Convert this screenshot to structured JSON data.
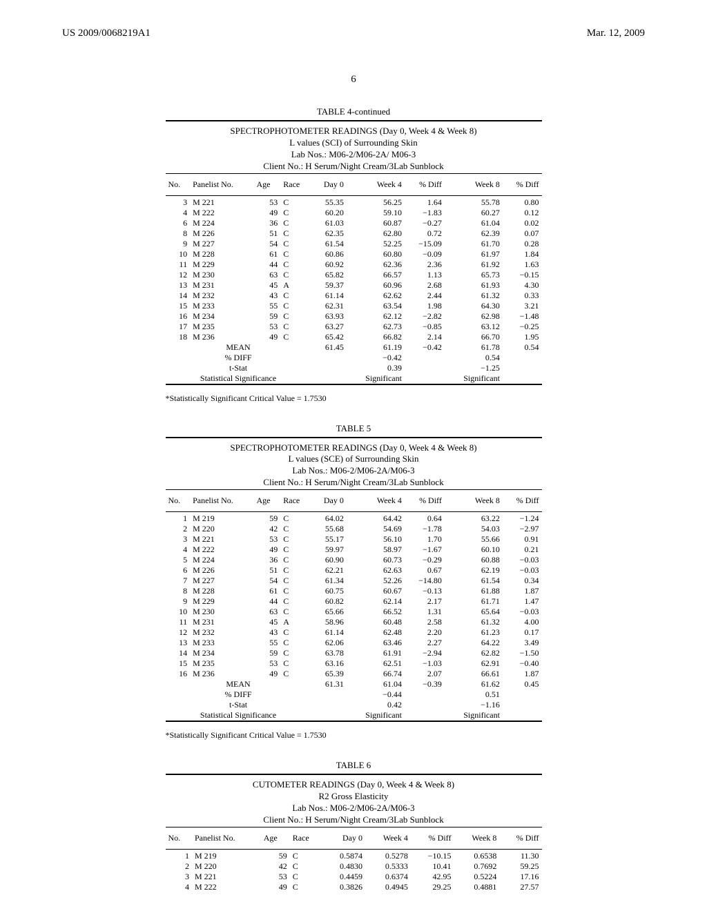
{
  "header": {
    "pub_no": "US 2009/0068219A1",
    "pub_date": "Mar. 12, 2009",
    "page_no": "6"
  },
  "tables": {
    "t4": {
      "label": "TABLE 4-continued",
      "caption": [
        "SPECTROPHOTOMETER READINGS (Day 0, Week 4 & Week 8)",
        "L values (SCI) of Surrounding Skin",
        "Lab Nos.: M06-2/M06-2A/ M06-3",
        "Client No.: H Serum/Night Cream/3Lab Sunblock"
      ],
      "cols": [
        "No.",
        "Panelist No.",
        "Age",
        "Race",
        "Day 0",
        "Week 4",
        "% Diff",
        "Week 8",
        "% Diff"
      ],
      "rows": [
        [
          "3",
          "M 221",
          "53",
          "C",
          "55.35",
          "56.25",
          "1.64",
          "55.78",
          "0.80"
        ],
        [
          "4",
          "M 222",
          "49",
          "C",
          "60.20",
          "59.10",
          "−1.83",
          "60.27",
          "0.12"
        ],
        [
          "6",
          "M 224",
          "36",
          "C",
          "61.03",
          "60.87",
          "−0.27",
          "61.04",
          "0.02"
        ],
        [
          "8",
          "M 226",
          "51",
          "C",
          "62.35",
          "62.80",
          "0.72",
          "62.39",
          "0.07"
        ],
        [
          "9",
          "M 227",
          "54",
          "C",
          "61.54",
          "52.25",
          "−15.09",
          "61.70",
          "0.28"
        ],
        [
          "10",
          "M 228",
          "61",
          "C",
          "60.86",
          "60.80",
          "−0.09",
          "61.97",
          "1.84"
        ],
        [
          "11",
          "M 229",
          "44",
          "C",
          "60.92",
          "62.36",
          "2.36",
          "61.92",
          "1.63"
        ],
        [
          "12",
          "M 230",
          "63",
          "C",
          "65.82",
          "66.57",
          "1.13",
          "65.73",
          "−0.15"
        ],
        [
          "13",
          "M 231",
          "45",
          "A",
          "59.37",
          "60.96",
          "2.68",
          "61.93",
          "4.30"
        ],
        [
          "14",
          "M 232",
          "43",
          "C",
          "61.14",
          "62.62",
          "2.44",
          "61.32",
          "0.33"
        ],
        [
          "15",
          "M 233",
          "55",
          "C",
          "62.31",
          "63.54",
          "1.98",
          "64.30",
          "3.21"
        ],
        [
          "16",
          "M 234",
          "59",
          "C",
          "63.93",
          "62.12",
          "−2.82",
          "62.98",
          "−1.48"
        ],
        [
          "17",
          "M 235",
          "53",
          "C",
          "63.27",
          "62.73",
          "−0.85",
          "63.12",
          "−0.25"
        ],
        [
          "18",
          "M 236",
          "49",
          "C",
          "65.42",
          "66.82",
          "2.14",
          "66.70",
          "1.95"
        ]
      ],
      "summary": [
        {
          "label": "MEAN",
          "day0": "61.45",
          "week4": "61.19",
          "pdiff4": "−0.42",
          "week8": "61.78",
          "pdiff8": "0.54"
        },
        {
          "label": "% DIFF",
          "day0": "",
          "week4": "−0.42",
          "pdiff4": "",
          "week8": "0.54",
          "pdiff8": ""
        },
        {
          "label": "t-Stat",
          "day0": "",
          "week4": "0.39",
          "pdiff4": "",
          "week8": "−1.25",
          "pdiff8": ""
        },
        {
          "label": "Statistical Significance",
          "day0": "",
          "week4": "Significant",
          "pdiff4": "",
          "week8": "Significant",
          "pdiff8": ""
        }
      ],
      "footnote": "*Statistically Significant Critical Value = 1.7530"
    },
    "t5": {
      "label": "TABLE 5",
      "caption": [
        "SPECTROPHOTOMETER READINGS (Day 0, Week 4 & Week 8)",
        "L values (SCE) of Surrounding Skin",
        "Lab Nos.: M06-2/M06-2A/M06-3",
        "Client No.: H Serum/Night Cream/3Lab Sunblock"
      ],
      "cols": [
        "No.",
        "Panelist No.",
        "Age",
        "Race",
        "Day 0",
        "Week 4",
        "% Diff",
        "Week 8",
        "% Diff"
      ],
      "rows": [
        [
          "1",
          "M 219",
          "59",
          "C",
          "64.02",
          "64.42",
          "0.64",
          "63.22",
          "−1.24"
        ],
        [
          "2",
          "M 220",
          "42",
          "C",
          "55.68",
          "54.69",
          "−1.78",
          "54.03",
          "−2.97"
        ],
        [
          "3",
          "M 221",
          "53",
          "C",
          "55.17",
          "56.10",
          "1.70",
          "55.66",
          "0.91"
        ],
        [
          "4",
          "M 222",
          "49",
          "C",
          "59.97",
          "58.97",
          "−1.67",
          "60.10",
          "0.21"
        ],
        [
          "5",
          "M 224",
          "36",
          "C",
          "60.90",
          "60.73",
          "−0.29",
          "60.88",
          "−0.03"
        ],
        [
          "6",
          "M 226",
          "51",
          "C",
          "62.21",
          "62.63",
          "0.67",
          "62.19",
          "−0.03"
        ],
        [
          "7",
          "M 227",
          "54",
          "C",
          "61.34",
          "52.26",
          "−14.80",
          "61.54",
          "0.34"
        ],
        [
          "8",
          "M 228",
          "61",
          "C",
          "60.75",
          "60.67",
          "−0.13",
          "61.88",
          "1.87"
        ],
        [
          "9",
          "M 229",
          "44",
          "C",
          "60.82",
          "62.14",
          "2.17",
          "61.71",
          "1.47"
        ],
        [
          "10",
          "M 230",
          "63",
          "C",
          "65.66",
          "66.52",
          "1.31",
          "65.64",
          "−0.03"
        ],
        [
          "11",
          "M 231",
          "45",
          "A",
          "58.96",
          "60.48",
          "2.58",
          "61.32",
          "4.00"
        ],
        [
          "12",
          "M 232",
          "43",
          "C",
          "61.14",
          "62.48",
          "2.20",
          "61.23",
          "0.17"
        ],
        [
          "13",
          "M 233",
          "55",
          "C",
          "62.06",
          "63.46",
          "2.27",
          "64.22",
          "3.49"
        ],
        [
          "14",
          "M 234",
          "59",
          "C",
          "63.78",
          "61.91",
          "−2.94",
          "62.82",
          "−1.50"
        ],
        [
          "15",
          "M 235",
          "53",
          "C",
          "63.16",
          "62.51",
          "−1.03",
          "62.91",
          "−0.40"
        ],
        [
          "16",
          "M 236",
          "49",
          "C",
          "65.39",
          "66.74",
          "2.07",
          "66.61",
          "1.87"
        ]
      ],
      "summary": [
        {
          "label": "MEAN",
          "day0": "61.31",
          "week4": "61.04",
          "pdiff4": "−0.39",
          "week8": "61.62",
          "pdiff8": "0.45"
        },
        {
          "label": "% DIFF",
          "day0": "",
          "week4": "−0.44",
          "pdiff4": "",
          "week8": "0.51",
          "pdiff8": ""
        },
        {
          "label": "t-Stat",
          "day0": "",
          "week4": "0.42",
          "pdiff4": "",
          "week8": "−1.16",
          "pdiff8": ""
        },
        {
          "label": "Statistical Significance",
          "day0": "",
          "week4": "Significant",
          "pdiff4": "",
          "week8": "Significant",
          "pdiff8": ""
        }
      ],
      "footnote": "*Statistically Significant Critical Value = 1.7530"
    },
    "t6": {
      "label": "TABLE 6",
      "caption": [
        "CUTOMETER READINGS (Day 0, Week 4 & Week 8)",
        "R2 Gross Elasticity",
        "Lab Nos.: M06-2/M06-2A/M06-3",
        "Client No.: H Serum/Night Cream/3Lab Sunblock"
      ],
      "cols": [
        "No.",
        "Panelist No.",
        "Age",
        "Race",
        "Day 0",
        "Week 4",
        "% Diff",
        "Week 8",
        "% Diff"
      ],
      "rows": [
        [
          "1",
          "M 219",
          "59",
          "C",
          "0.5874",
          "0.5278",
          "−10.15",
          "0.6538",
          "11.30"
        ],
        [
          "2",
          "M 220",
          "42",
          "C",
          "0.4830",
          "0.5333",
          "10.41",
          "0.7692",
          "59.25"
        ],
        [
          "3",
          "M 221",
          "53",
          "C",
          "0.4459",
          "0.6374",
          "42.95",
          "0.5224",
          "17.16"
        ],
        [
          "4",
          "M 222",
          "49",
          "C",
          "0.3826",
          "0.4945",
          "29.25",
          "0.4881",
          "27.57"
        ]
      ]
    }
  }
}
